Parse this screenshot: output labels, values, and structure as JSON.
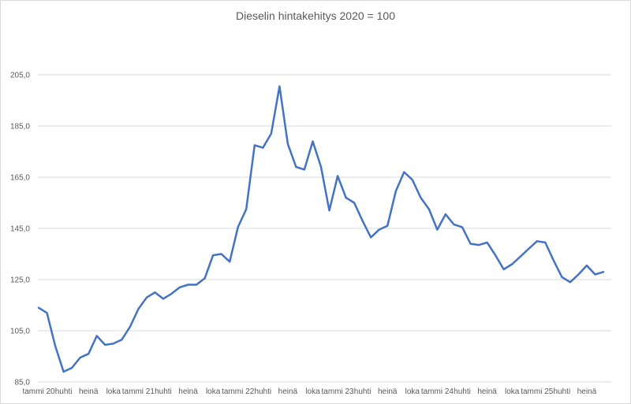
{
  "chart_data": {
    "type": "line",
    "title": "Dieselin hintakehitys 2020 = 100",
    "xlabel": "",
    "ylabel": "",
    "ylim": [
      85,
      205
    ],
    "y_ticks": [
      "85,0",
      "105,0",
      "125,0",
      "145,0",
      "165,0",
      "185,0",
      "205,0"
    ],
    "y_tick_values": [
      85,
      105,
      125,
      145,
      165,
      185,
      205
    ],
    "grid": true,
    "legend": "none",
    "x_tick_labels": [
      {
        "index": 0,
        "label": "tammi 20"
      },
      {
        "index": 3,
        "label": "huhti"
      },
      {
        "index": 6,
        "label": "heinä"
      },
      {
        "index": 9,
        "label": "loka"
      },
      {
        "index": 12,
        "label": "tammi 21"
      },
      {
        "index": 15,
        "label": "huhti"
      },
      {
        "index": 18,
        "label": "heinä"
      },
      {
        "index": 21,
        "label": "loka"
      },
      {
        "index": 24,
        "label": "tammi 22"
      },
      {
        "index": 27,
        "label": "huhti"
      },
      {
        "index": 30,
        "label": "heinä"
      },
      {
        "index": 33,
        "label": "loka"
      },
      {
        "index": 36,
        "label": "tammi 23"
      },
      {
        "index": 39,
        "label": "huhti"
      },
      {
        "index": 42,
        "label": "heinä"
      },
      {
        "index": 45,
        "label": "loka"
      },
      {
        "index": 48,
        "label": "tammi 24"
      },
      {
        "index": 51,
        "label": "huhti"
      },
      {
        "index": 54,
        "label": "heinä"
      },
      {
        "index": 57,
        "label": "loka"
      },
      {
        "index": 60,
        "label": "tammi 25"
      },
      {
        "index": 63,
        "label": "huhti"
      },
      {
        "index": 66,
        "label": "heinä"
      }
    ],
    "series": [
      {
        "color": "#4472c4",
        "values": [
          114,
          112,
          99,
          89,
          90.5,
          94.5,
          96,
          103,
          99.5,
          100,
          101.5,
          106.5,
          113.5,
          118,
          120,
          117.5,
          119.5,
          122,
          123,
          123,
          125.5,
          134.5,
          135,
          132,
          145.5,
          152.5,
          177.5,
          176.5,
          182,
          200.5,
          178,
          169,
          168,
          179,
          169,
          152,
          165.5,
          157,
          155,
          148,
          141.5,
          144.5,
          146,
          159.5,
          167,
          164,
          157,
          152.5,
          144.5,
          150.5,
          146.5,
          145.5,
          139,
          138.5,
          139.5,
          134.5,
          129,
          131,
          134,
          137,
          140,
          139.5,
          132.5,
          126,
          124,
          127,
          130.5,
          127,
          128
        ]
      }
    ],
    "axis_color": "#d9d9d9",
    "text_color": "#595959"
  }
}
